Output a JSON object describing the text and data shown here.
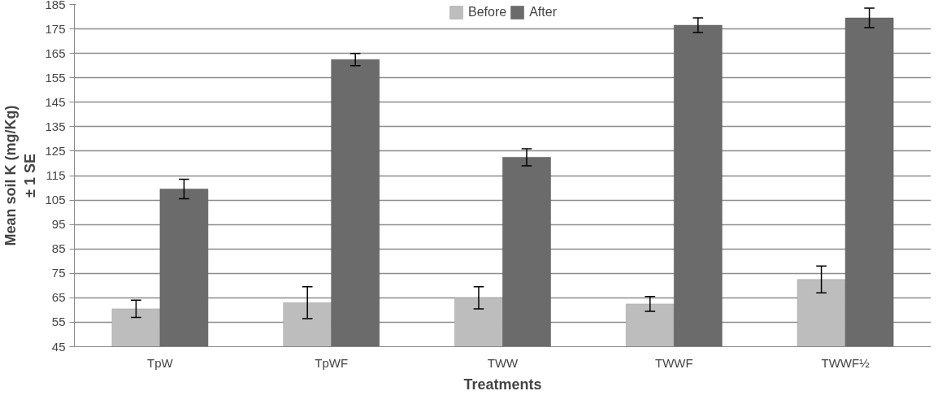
{
  "chart_data": {
    "type": "bar",
    "xlabel": "Treatments",
    "ylabel": "Mean soil K (mg/Kg)\n± 1 SE",
    "categories": [
      "TpW",
      "TpWF",
      "TWW",
      "TWWF",
      "TWWF½"
    ],
    "series": [
      {
        "name": "Before",
        "color": "#bdbdbd",
        "values": [
          60.5,
          63,
          65,
          62.5,
          72.5
        ],
        "errors": [
          3.5,
          6.5,
          4.5,
          3,
          5.5
        ]
      },
      {
        "name": "After",
        "color": "#6b6b6b",
        "values": [
          109.5,
          162.5,
          122.5,
          176.5,
          179.5
        ],
        "errors": [
          4,
          2.5,
          3.5,
          3,
          4
        ]
      }
    ],
    "ylim": [
      45,
      185
    ],
    "yticks": [
      45,
      55,
      65,
      75,
      85,
      95,
      105,
      115,
      125,
      135,
      145,
      155,
      165,
      175,
      185
    ],
    "grid": "y",
    "legend": "top"
  }
}
